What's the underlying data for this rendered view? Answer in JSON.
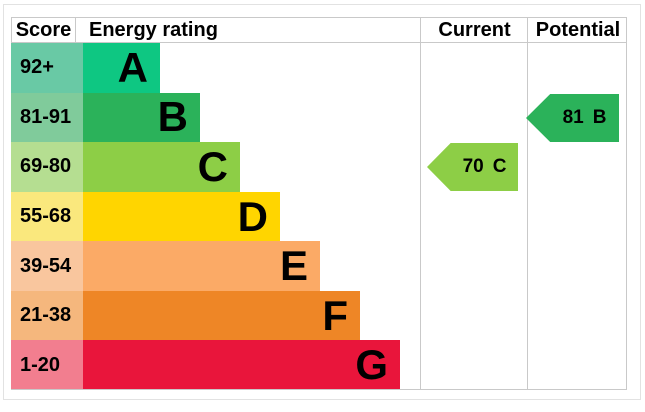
{
  "header": {
    "score": "Score",
    "energy_rating": "Energy rating",
    "current": "Current",
    "potential": "Potential"
  },
  "chart_data": {
    "type": "bar",
    "title": "Energy rating",
    "bands": [
      {
        "score_range": "92+",
        "letter": "A",
        "color": "#0ec782",
        "score_cell_color": "#69c9a5"
      },
      {
        "score_range": "81-91",
        "letter": "B",
        "color": "#2bb25a",
        "score_cell_color": "#80cb9b"
      },
      {
        "score_range": "69-80",
        "letter": "C",
        "color": "#8dce46",
        "score_cell_color": "#b5de91"
      },
      {
        "score_range": "55-68",
        "letter": "D",
        "color": "#ffd500",
        "score_cell_color": "#fae87d"
      },
      {
        "score_range": "39-54",
        "letter": "E",
        "color": "#fbaa66",
        "score_cell_color": "#f9c69e"
      },
      {
        "score_range": "21-38",
        "letter": "F",
        "color": "#ee8626",
        "score_cell_color": "#f5b77d"
      },
      {
        "score_range": "1-20",
        "letter": "G",
        "color": "#e9153b",
        "score_cell_color": "#f27e8f"
      }
    ],
    "current": {
      "value": "70",
      "letter": "C"
    },
    "potential": {
      "value": "81",
      "letter": "B"
    }
  }
}
